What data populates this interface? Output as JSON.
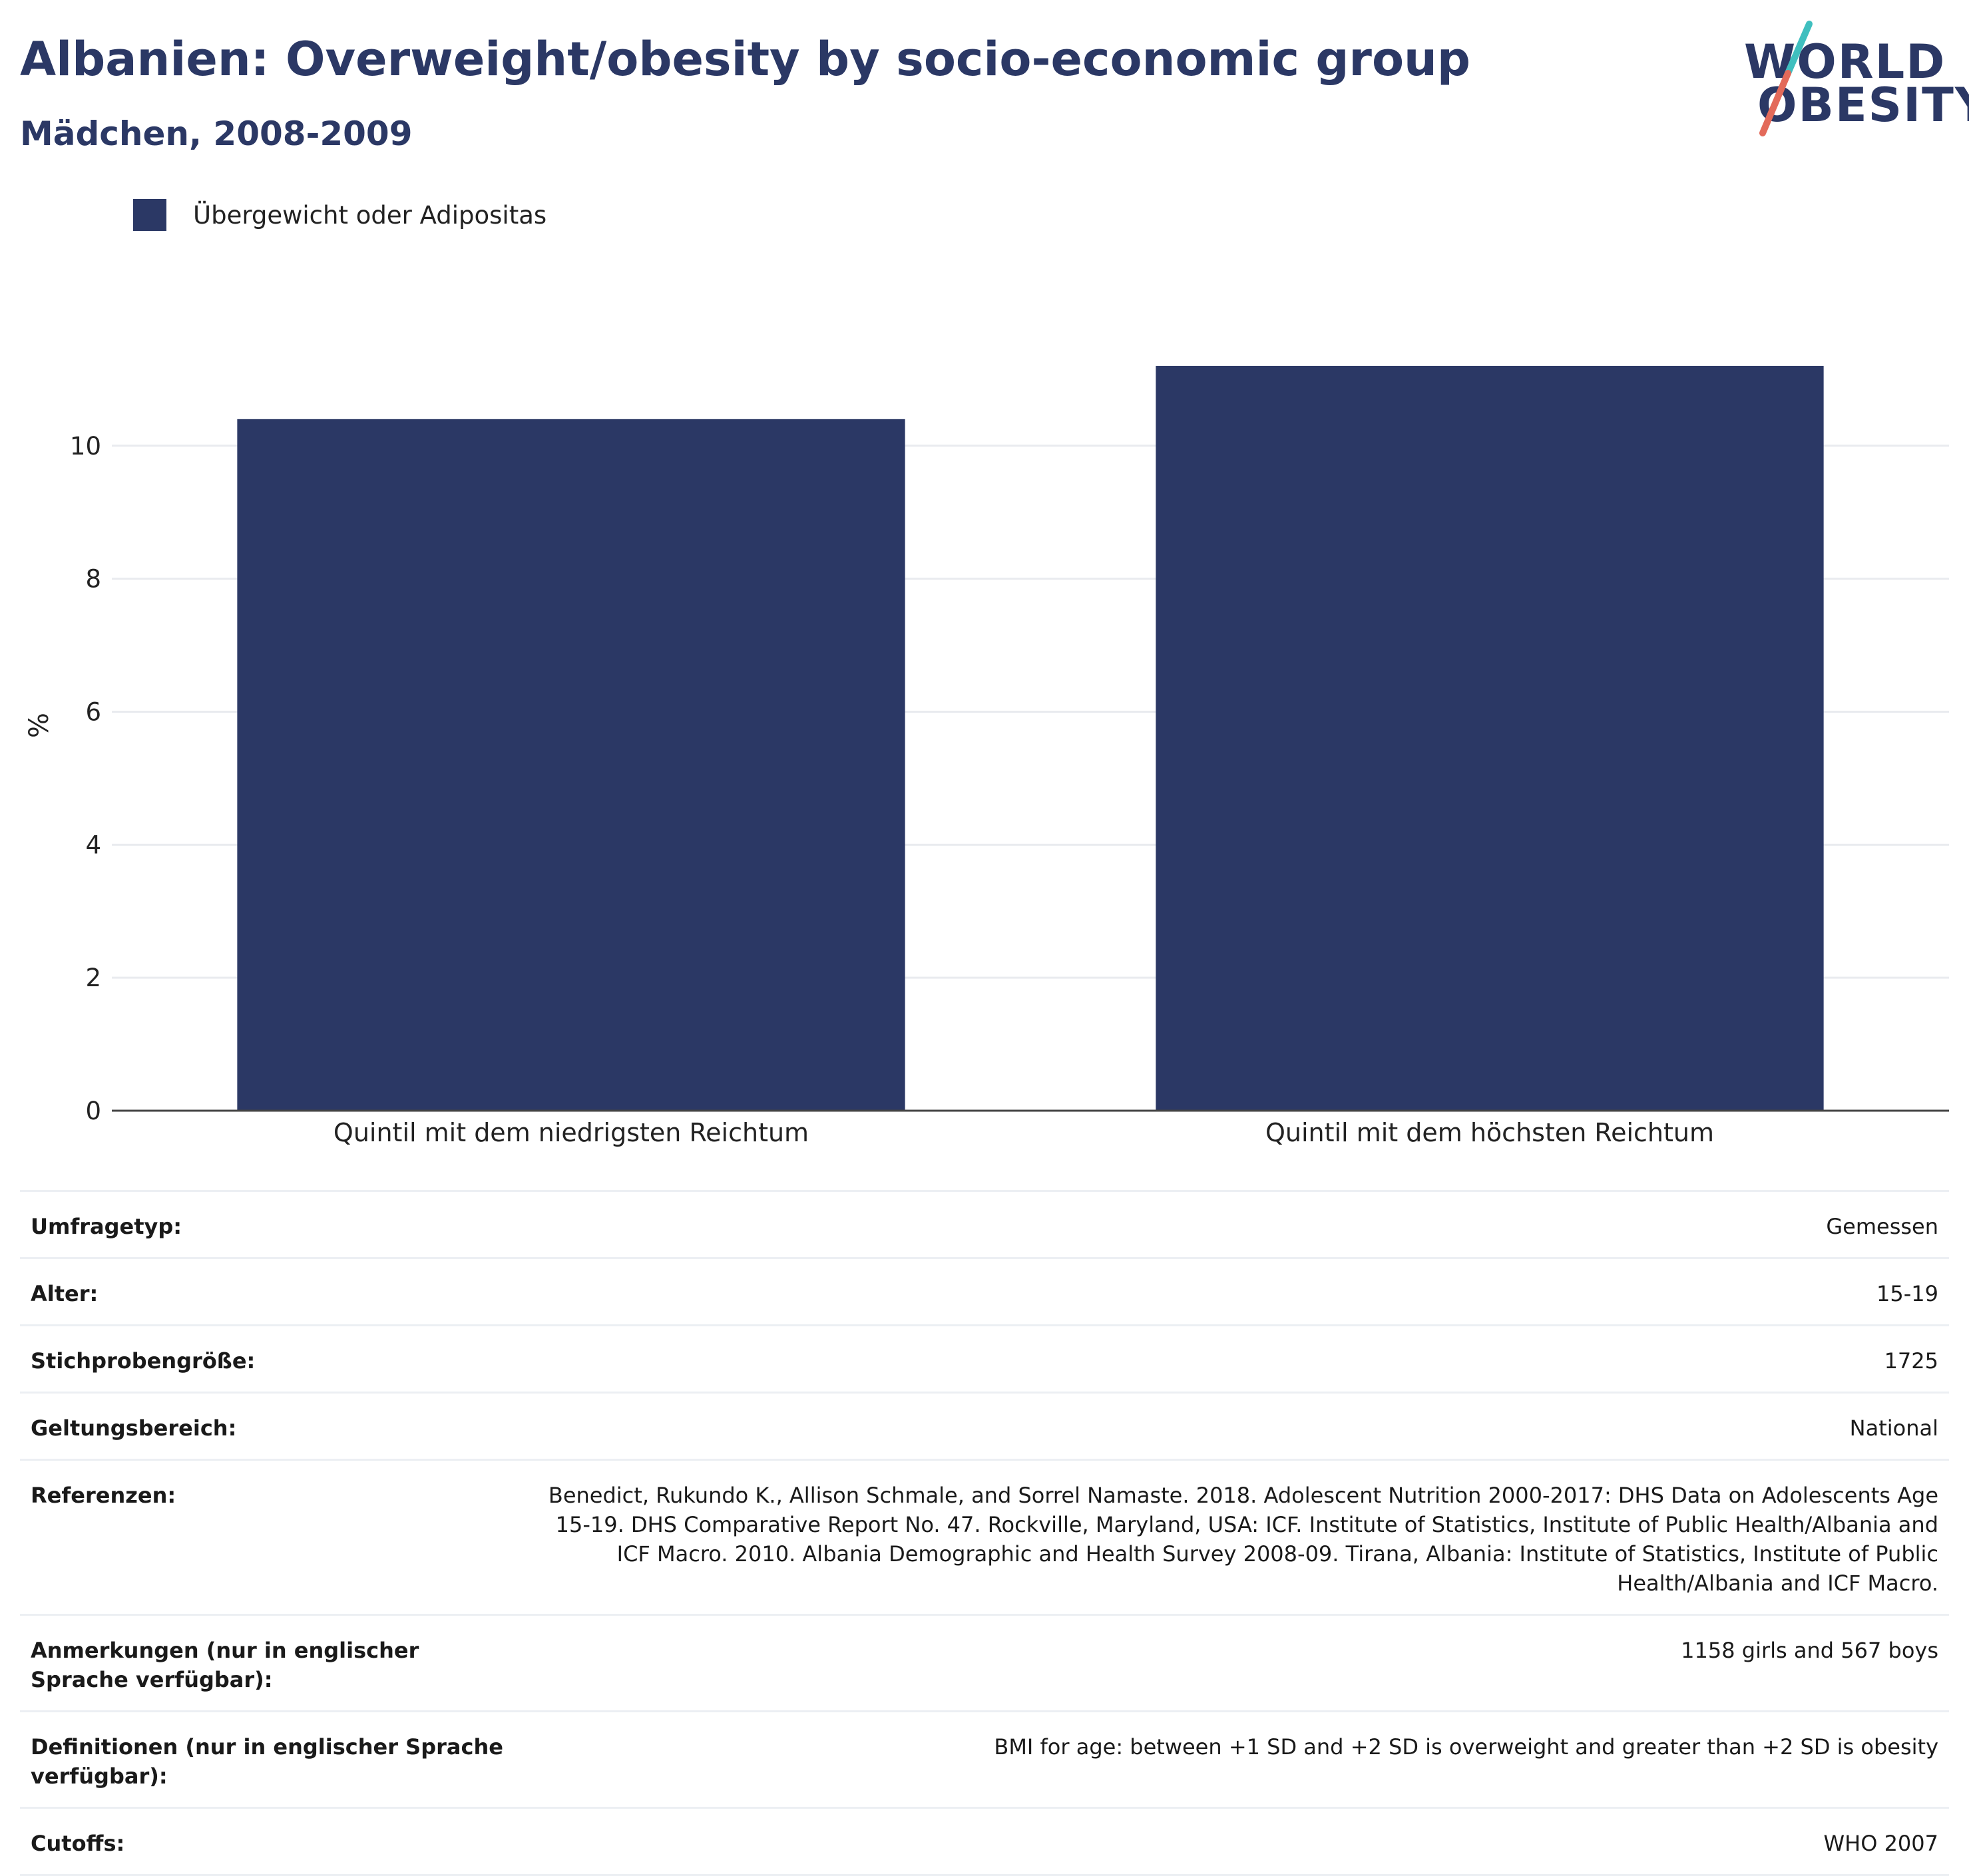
{
  "header": {
    "title": "Albanien: Overweight/obesity by socio-economic group",
    "subtitle": "Mädchen, 2008-2009"
  },
  "logo": {
    "line1": "WORLD",
    "line2": "OBESITY"
  },
  "colors": {
    "bar": "#2b3865",
    "text": "#2b3865",
    "grid": "#e9ebef",
    "logo_teal": "#3fbfbf",
    "logo_coral": "#e36a5a"
  },
  "chart_data": {
    "type": "bar",
    "categories": [
      "Quintil mit dem niedrigsten Reichtum",
      "Quintil mit dem höchsten Reichtum"
    ],
    "series": [
      {
        "name": "Übergewicht oder Adipositas",
        "values": [
          10.4,
          11.2
        ]
      }
    ],
    "ylabel": "%",
    "ylim": [
      0,
      12.5
    ],
    "yticks": [
      0,
      2,
      4,
      6,
      8,
      10
    ],
    "grid": true,
    "legend_position": "top-left"
  },
  "meta": {
    "rows": [
      {
        "label": "Umfragetyp:",
        "value": "Gemessen"
      },
      {
        "label": "Alter:",
        "value": "15-19"
      },
      {
        "label": "Stichprobengröße:",
        "value": "1725"
      },
      {
        "label": "Geltungsbereich:",
        "value": "National"
      },
      {
        "label": "Referenzen:",
        "value": "Benedict, Rukundo K., Allison Schmale, and Sorrel Namaste. 2018. Adolescent Nutrition 2000-2017: DHS Data on Adolescents Age 15-19. DHS Comparative Report No. 47. Rockville, Maryland, USA: ICF. Institute of Statistics, Institute of Public Health/Albania and ICF Macro. 2010. Albania Demographic and Health Survey 2008-09. Tirana, Albania: Institute of Statistics, Institute of Public Health/Albania and ICF Macro."
      },
      {
        "label": "Anmerkungen (nur in englischer Sprache verfügbar):",
        "value": "1158 girls and 567 boys"
      },
      {
        "label": "Definitionen (nur in englischer Sprache verfügbar):",
        "value": "BMI for age: between +1 SD and +2 SD is overweight and greater than +2 SD is obesity"
      },
      {
        "label": "Cutoffs:",
        "value": "WHO 2007"
      }
    ]
  }
}
